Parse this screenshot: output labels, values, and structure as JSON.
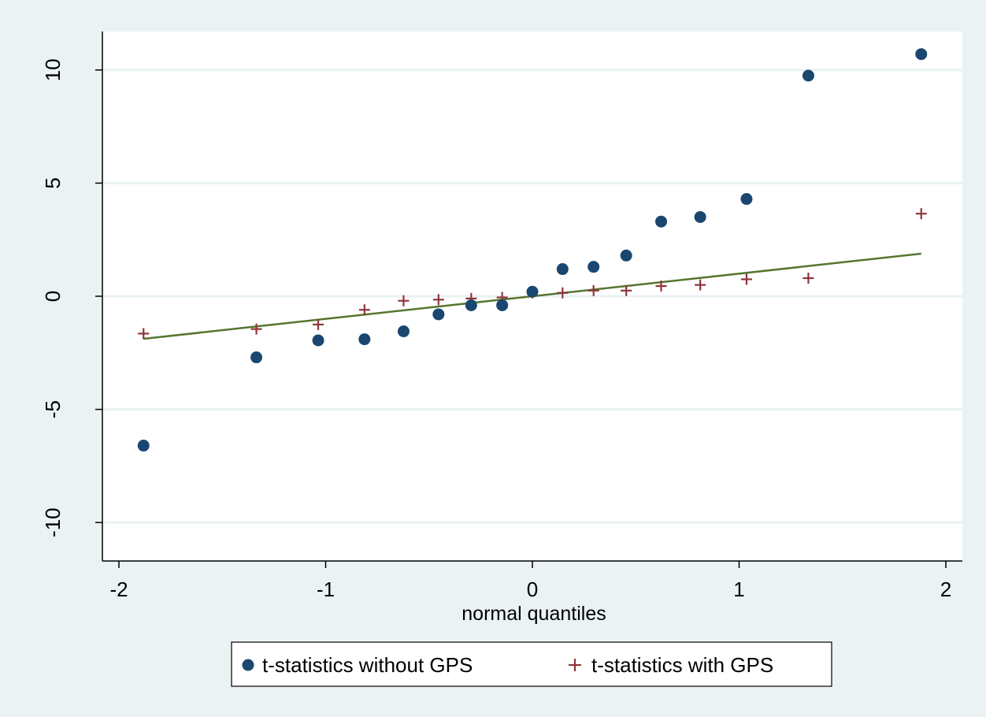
{
  "chart_data": {
    "type": "scatter",
    "title": "",
    "xlabel": "normal quantiles",
    "ylabel": "",
    "xlim": [
      -2.08,
      2.08
    ],
    "ylim": [
      -11.7,
      11.7
    ],
    "x_ticks": [
      -2,
      -1,
      0,
      1,
      2
    ],
    "x_tick_labels": [
      "-2",
      "-1",
      "0",
      "1",
      "2"
    ],
    "y_ticks": [
      -10,
      -5,
      0,
      5,
      10
    ],
    "y_tick_labels": [
      "-10",
      "-5",
      "0",
      "5",
      "10"
    ],
    "grid": "horizontal",
    "legend_position": "bottom",
    "series": [
      {
        "name": "t-statistics without GPS",
        "marker": "circle",
        "color": "#1a476f",
        "x": [
          -1.881,
          -1.335,
          -1.036,
          -0.812,
          -0.623,
          -0.454,
          -0.296,
          -0.146,
          0.0,
          0.146,
          0.296,
          0.454,
          0.623,
          0.812,
          1.036,
          1.335,
          1.881
        ],
        "y": [
          -6.6,
          -2.7,
          -1.95,
          -1.9,
          -1.55,
          -0.8,
          -0.4,
          -0.4,
          0.2,
          1.2,
          1.3,
          1.8,
          3.3,
          3.5,
          4.3,
          9.75,
          10.7
        ]
      },
      {
        "name": "t-statistics with GPS",
        "marker": "plus",
        "color": "#90353b",
        "x": [
          -1.881,
          -1.335,
          -1.036,
          -0.812,
          -0.623,
          -0.454,
          -0.296,
          -0.146,
          0.0,
          0.146,
          0.296,
          0.454,
          0.623,
          0.812,
          1.036,
          1.335,
          1.881
        ],
        "y": [
          -1.65,
          -1.45,
          -1.25,
          -0.6,
          -0.2,
          -0.15,
          -0.1,
          -0.05,
          0.15,
          0.15,
          0.25,
          0.25,
          0.45,
          0.5,
          0.75,
          0.8,
          3.65
        ]
      }
    ],
    "reference_line": {
      "x": [
        -1.881,
        1.881
      ],
      "y": [
        -1.881,
        1.881
      ],
      "color": "#55752f"
    }
  }
}
